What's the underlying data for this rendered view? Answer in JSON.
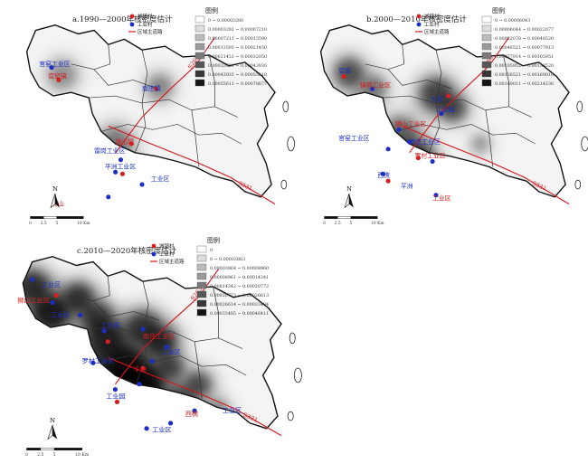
{
  "panels": [
    {
      "title": "a.1990—2000年核密度估计",
      "legend_title": "图例",
      "symbols": [
        "城镇村",
        "工业村",
        "区域主道路"
      ],
      "classes": [
        "0 ~ 0.00003280",
        "0.00003281 ~ 0.00007210",
        "0.00007211 ~ 0.00013590",
        "0.00013591 ~ 0.00021450",
        "0.00021451 ~ 0.00032050",
        "0.00032051 ~ 0.00043930",
        "0.00043931 ~ 0.00055610",
        "0.00055611 ~ 0.00078677"
      ],
      "labels": [
        "官窑工业区",
        "官窑镇",
        "南庄镇",
        "雷岗工业区",
        "狮山镇",
        "平洲工业区",
        "工业区",
        "佛山"
      ],
      "roads": [
        "S263",
        "S331"
      ],
      "scale": [
        "0",
        "2.5",
        "5",
        "10 Km"
      ]
    },
    {
      "title": "b.2000—2010年核密度估计",
      "legend_title": "图例",
      "symbols": [
        "城镇村",
        "工业村",
        "区域主道路"
      ],
      "classes": [
        "0 ~ 0.00006043",
        "0.00006044 ~ 0.00022077",
        "0.00022078 ~ 0.00048520",
        "0.00048521 ~ 0.00077913",
        "0.00077914 ~ 0.00105951",
        "0.00105952 ~ 0.00138520",
        "0.00138521 ~ 0.00169010",
        "0.00169011 ~ 0.00214236"
      ],
      "labels": [
        "官窑",
        "镇南工业区",
        "大沥",
        "官窑工业区",
        "狮山工业区",
        "工业园",
        "南庄工业区",
        "罗村工业区",
        "西樵",
        "平洲",
        "工业区"
      ],
      "roads": [
        "S263",
        "S331"
      ],
      "scale": [
        "0",
        "2.5",
        "5",
        "10 Km"
      ]
    },
    {
      "title": "c.2010—2020年核密度估计",
      "legend_title": "图例",
      "symbols": [
        "城镇村",
        "工业村",
        "区域主道路"
      ],
      "classes": [
        "0",
        "0 ~ 0.00003863",
        "0.00003864 ~ 0.00008960",
        "0.00008961 ~ 0.00014341",
        "0.00014342 ~ 0.00020772",
        "0.00020773 ~ 0.00026613",
        "0.00026614 ~ 0.00033484",
        "0.00033485 ~ 0.00046411"
      ],
      "labels": [
        "工业区",
        "狮山工业区",
        "工业区",
        "工业园",
        "南庄工业区",
        "工业区",
        "罗村工业区",
        "平洲",
        "工业园",
        "工业区",
        "西樵",
        "工业区"
      ],
      "roads": [
        "S263",
        "S331"
      ],
      "scale": [
        "0",
        "2.5",
        "5",
        "10 Km"
      ]
    }
  ],
  "colors": {
    "town": "#d42020",
    "industry": "#1c2fc4",
    "road": "#d8141c"
  }
}
